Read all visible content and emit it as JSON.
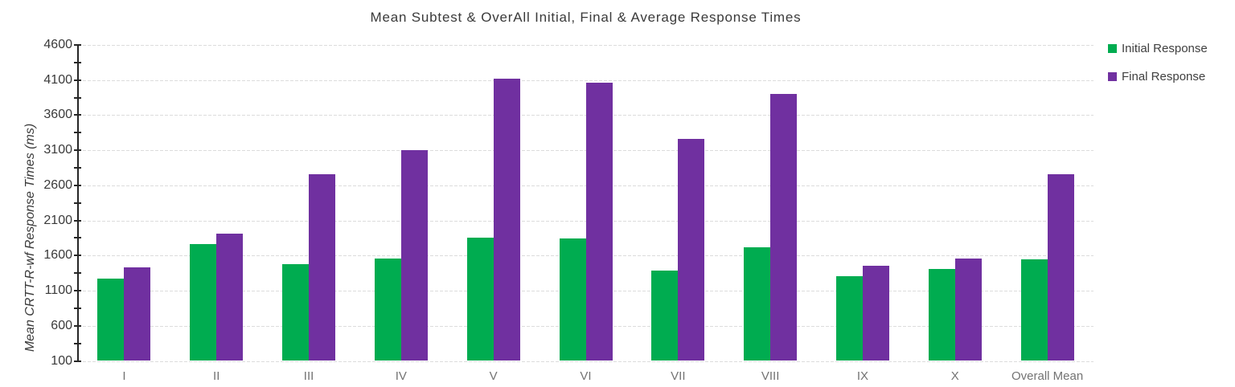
{
  "chart_data": {
    "type": "bar",
    "title": "Mean Subtest & OverAll Initial, Final & Average Response Times",
    "xlabel": "",
    "ylabel": "Mean CRTT-R-wf Response Times (ms)",
    "categories": [
      "I",
      "II",
      "III",
      "IV",
      "V",
      "VI",
      "VII",
      "VIII",
      "IX",
      "X",
      "Overall Mean"
    ],
    "series": [
      {
        "name": "Initial Response",
        "color": "#00AC50",
        "values": [
          1270,
          1760,
          1480,
          1560,
          1850,
          1840,
          1390,
          1720,
          1310,
          1410,
          1550
        ]
      },
      {
        "name": "Final Response",
        "color": "#7030A0",
        "values": [
          1430,
          1910,
          2760,
          3100,
          4120,
          4060,
          3260,
          3900,
          1450,
          1560,
          2760
        ]
      }
    ],
    "ylim": [
      100,
      4600
    ],
    "ytick_step": 500,
    "minor_tick_step": 250,
    "grid": true,
    "gridline_color": "#dcdcdc",
    "axis_color": "#262626",
    "legend_position": "right"
  }
}
